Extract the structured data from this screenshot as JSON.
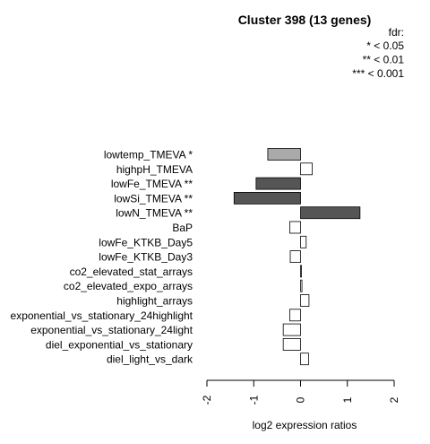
{
  "chart_data": {
    "type": "bar",
    "orientation": "horizontal",
    "title": "Cluster 398 (13 genes)",
    "xlabel": "log2 expression ratios",
    "ylabel": "",
    "xlim": [
      -2,
      2
    ],
    "x_ticks": [
      "-2",
      "-1",
      "0",
      "1",
      "2"
    ],
    "legend": {
      "title": "fdr:",
      "entries": [
        "* < 0.05",
        "** < 0.01",
        "*** < 0.001"
      ],
      "position": "top-right"
    },
    "categories": [
      "lowtemp_TMEVA *",
      "highpH_TMEVA",
      "lowFe_TMEVA **",
      "lowSi_TMEVA **",
      "lowN_TMEVA **",
      "BaP",
      "lowFe_KTKB_Day5",
      "lowFe_KTKB_Day3",
      "co2_elevated_stat_arrays",
      "co2_elevated_expo_arrays",
      "highlight_arrays",
      "exponential_vs_stationary_24highlight",
      "exponential_vs_stationary_24light",
      "diel_exponential_vs_stationary",
      "diel_light_vs_dark"
    ],
    "values": [
      -0.7,
      0.25,
      -0.95,
      -1.42,
      1.27,
      -0.23,
      0.12,
      -0.22,
      0.02,
      0.03,
      0.18,
      -0.23,
      -0.37,
      -0.37,
      0.17
    ],
    "bar_colors": [
      "#aaaaaa",
      "#ffffff",
      "#555555",
      "#555555",
      "#555555",
      "#ffffff",
      "#ffffff",
      "#ffffff",
      "#ffffff",
      "#ffffff",
      "#ffffff",
      "#ffffff",
      "#ffffff",
      "#ffffff",
      "#ffffff"
    ],
    "grid": false
  }
}
